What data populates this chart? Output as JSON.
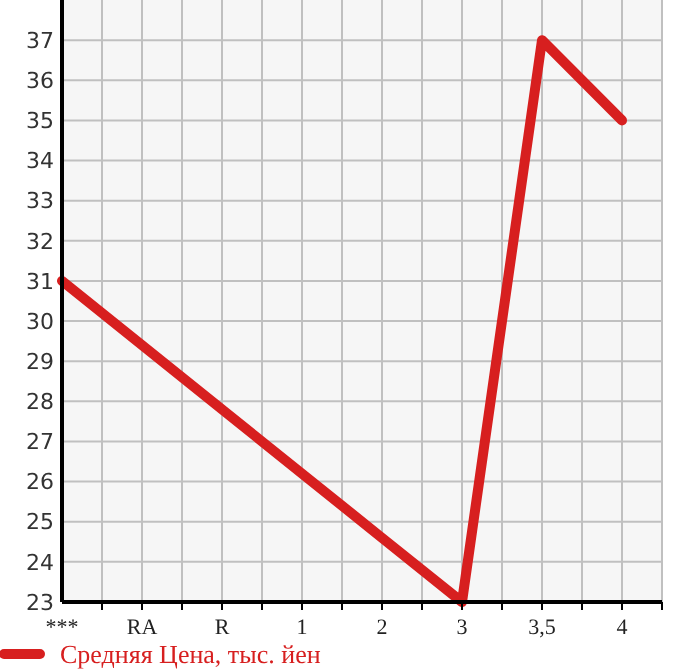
{
  "chart_data": {
    "type": "line",
    "categories": [
      "***",
      "RA",
      "R",
      "1",
      "2",
      "3",
      "3,5",
      "4"
    ],
    "series": [
      {
        "name": "Средняя Цена, тыс. йен",
        "color": "#d71f1f",
        "values": [
          31,
          29.4,
          27.8,
          26.2,
          24.6,
          23,
          37,
          35
        ]
      }
    ],
    "ylim": [
      23,
      38
    ],
    "yticks": [
      23,
      24,
      25,
      26,
      27,
      28,
      29,
      30,
      31,
      32,
      33,
      34,
      35,
      36,
      37
    ],
    "grid": true,
    "legend": "bottom",
    "marker": "none",
    "line_style": "solid"
  }
}
